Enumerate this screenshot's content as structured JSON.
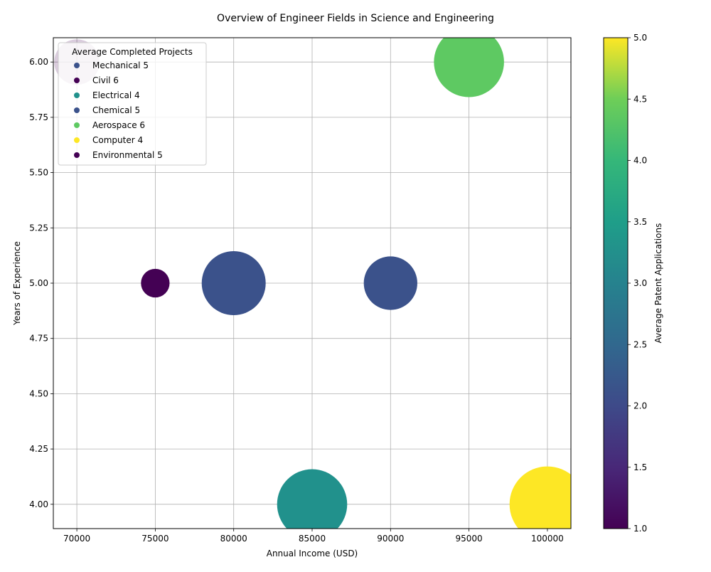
{
  "chart_data": {
    "type": "scatter",
    "title": "Overview of Engineer Fields in Science and Engineering",
    "xlabel": "Annual Income (USD)",
    "ylabel": "Years of Experience",
    "xlim": [
      68500,
      101500
    ],
    "ylim": [
      3.89,
      6.11
    ],
    "xticks": [
      70000,
      75000,
      80000,
      85000,
      90000,
      95000,
      100000
    ],
    "yticks": [
      "4.00",
      "4.25",
      "4.50",
      "4.75",
      "5.00",
      "5.25",
      "5.50",
      "5.75",
      "6.00"
    ],
    "grid": true,
    "legend": {
      "title": "Average Completed Projects",
      "placement": "top-left",
      "entries": [
        {
          "label": "Mechanical 5",
          "color": "#3b528b"
        },
        {
          "label": "Civil 6",
          "color": "#440154"
        },
        {
          "label": "Electrical 4",
          "color": "#21918c"
        },
        {
          "label": "Chemical 5",
          "color": "#3b528b"
        },
        {
          "label": "Aerospace 6",
          "color": "#5ec962"
        },
        {
          "label": "Computer 4",
          "color": "#fde725"
        },
        {
          "label": "Environmental 5",
          "color": "#440154"
        }
      ]
    },
    "points": [
      {
        "x": 80000,
        "y": 5,
        "patents": 2,
        "color": "#3b528b",
        "bubble": 5
      },
      {
        "x": 70000,
        "y": 6,
        "patents": 1,
        "color": "#440154",
        "bubble": 2.5,
        "opacity": 0.2
      },
      {
        "x": 85000,
        "y": 4,
        "patents": 3,
        "color": "#21918c",
        "bubble": 6
      },
      {
        "x": 90000,
        "y": 5,
        "patents": 2,
        "color": "#3b528b",
        "bubble": 3.5
      },
      {
        "x": 95000,
        "y": 6,
        "patents": 4,
        "color": "#5ec962",
        "bubble": 6
      },
      {
        "x": 100000,
        "y": 4,
        "patents": 5,
        "color": "#fde725",
        "bubble": 7
      },
      {
        "x": 75000,
        "y": 5,
        "patents": 1,
        "color": "#440154",
        "bubble": 1
      }
    ],
    "colorbar": {
      "label": "Average Patent Applications",
      "min": 1.0,
      "max": 5.0,
      "ticks": [
        "1.0",
        "1.5",
        "2.0",
        "2.5",
        "3.0",
        "3.5",
        "4.0",
        "4.5",
        "5.0"
      ],
      "colormap": "viridis"
    }
  }
}
